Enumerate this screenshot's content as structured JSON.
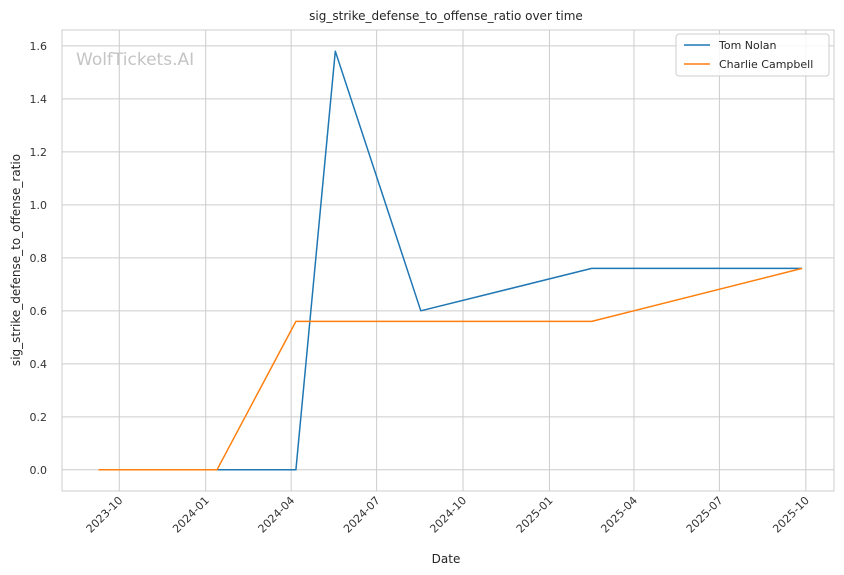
{
  "chart_data": {
    "type": "line",
    "title": "sig_strike_defense_to_offense_ratio over time",
    "xlabel": "Date",
    "ylabel": "sig_strike_defense_to_offense_ratio",
    "watermark": "WolfTickets.AI",
    "x_ticks": [
      "2023-10",
      "2024-01",
      "2024-04",
      "2024-07",
      "2024-10",
      "2025-01",
      "2025-04",
      "2025-07",
      "2025-10"
    ],
    "y_ticks": [
      "0.0",
      "0.2",
      "0.4",
      "0.6",
      "0.8",
      "1.0",
      "1.2",
      "1.4",
      "1.6"
    ],
    "xlim": [
      "2023-08-01",
      "2025-10-31"
    ],
    "ylim": [
      -0.08,
      1.66
    ],
    "grid": true,
    "legend_position": "top-right",
    "series": [
      {
        "name": "Tom Nolan",
        "color": "#1f77b4",
        "points": [
          {
            "x": "2024-01-13",
            "y": 0.0
          },
          {
            "x": "2024-04-06",
            "y": 0.0
          },
          {
            "x": "2024-05-18",
            "y": 1.58
          },
          {
            "x": "2024-08-17",
            "y": 0.6
          },
          {
            "x": "2025-02-15",
            "y": 0.76
          },
          {
            "x": "2025-09-27",
            "y": 0.76
          }
        ]
      },
      {
        "name": "Charlie Campbell",
        "color": "#ff7f0e",
        "points": [
          {
            "x": "2023-09-09",
            "y": 0.0
          },
          {
            "x": "2024-01-13",
            "y": 0.0
          },
          {
            "x": "2024-04-06",
            "y": 0.56
          },
          {
            "x": "2025-02-15",
            "y": 0.56
          },
          {
            "x": "2025-09-27",
            "y": 0.76
          }
        ]
      }
    ]
  }
}
